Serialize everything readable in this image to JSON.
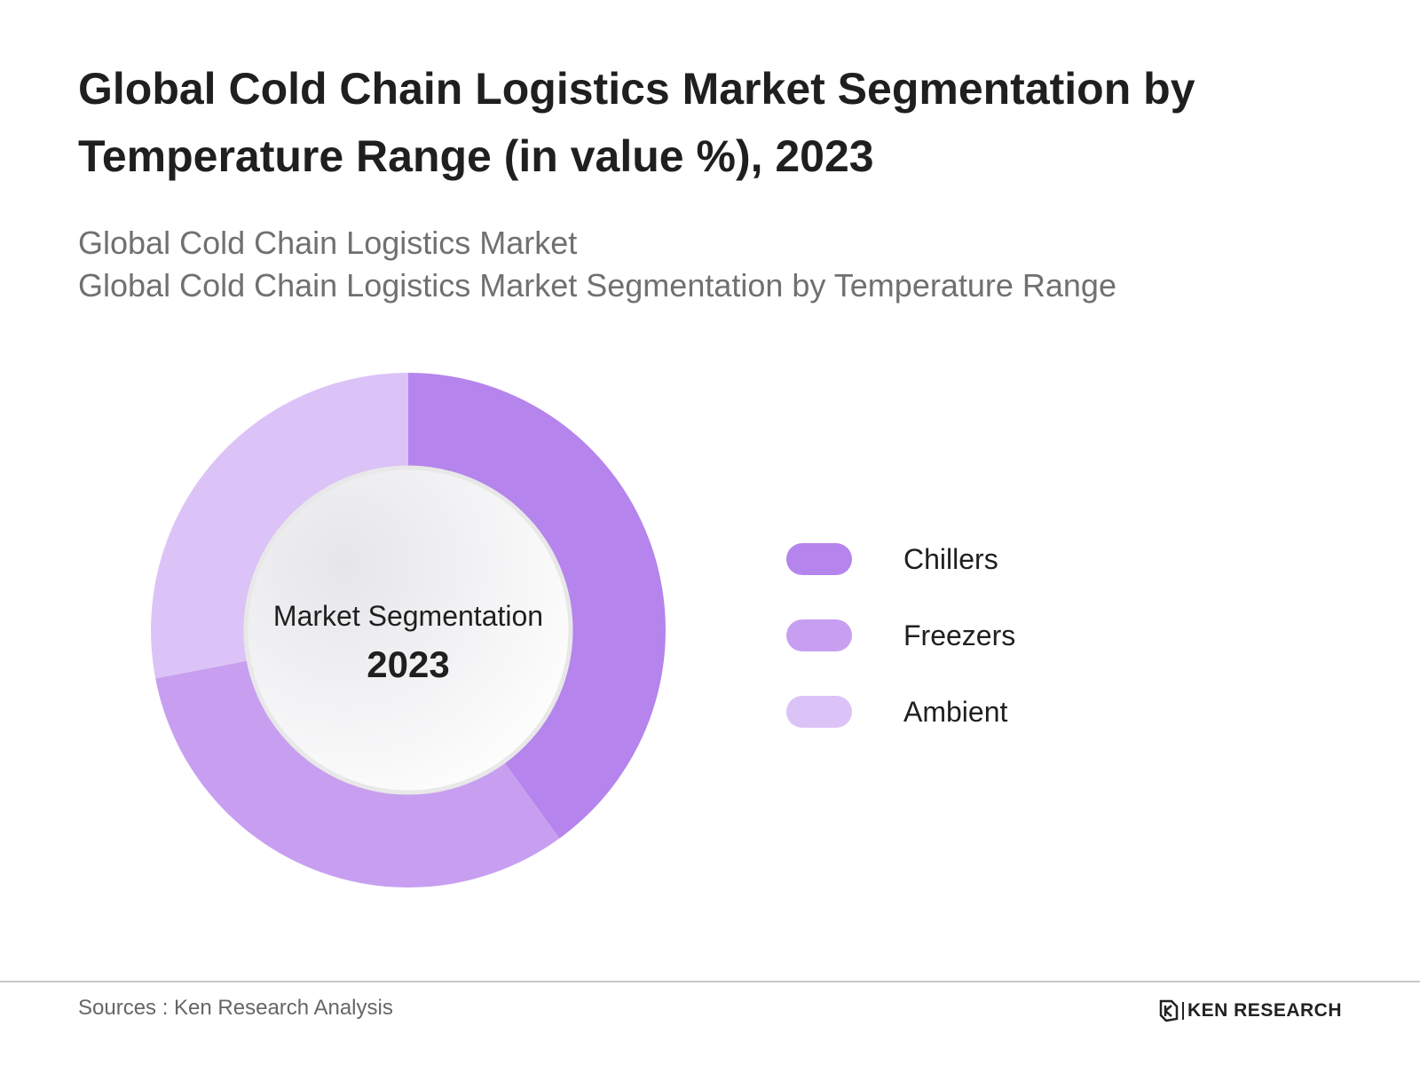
{
  "header": {
    "title": "Global Cold Chain Logistics Market Segmentation by Temperature Range (in value %), 2023",
    "subtitle_line1": "Global Cold Chain Logistics Market",
    "subtitle_line2": "Global Cold Chain Logistics Market Segmentation by Temperature Range"
  },
  "chart_data": {
    "type": "pie",
    "categories": [
      "Chillers",
      "Freezers",
      "Ambient"
    ],
    "values": [
      40,
      32,
      28
    ],
    "colors": [
      "#b584ec",
      "#c89ff0",
      "#dcc3f7"
    ],
    "center_label": "Market Segmentation",
    "center_year": "2023",
    "legend_position": "right"
  },
  "footer": {
    "source": "Sources : Ken Research Analysis",
    "brand": "KEN RESEARCH",
    "brand_icon": "ken-research-logo-icon"
  }
}
